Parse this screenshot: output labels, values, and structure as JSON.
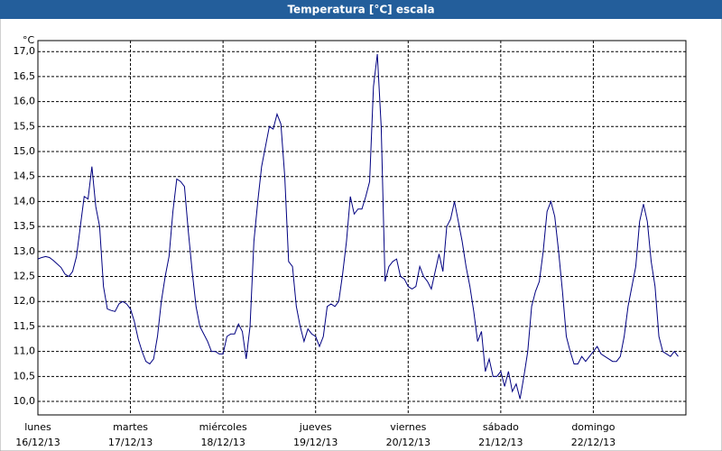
{
  "chart_data": {
    "type": "line",
    "title": "Temperatura [°C] escala",
    "y_label": "°C",
    "x": [
      0,
      1,
      2,
      3,
      4,
      5,
      6,
      7,
      8,
      9,
      10,
      11,
      12,
      13,
      14,
      15,
      16,
      17,
      18,
      19,
      20,
      21,
      22,
      23,
      24,
      25,
      26,
      27,
      28,
      29,
      30,
      31,
      32,
      33,
      34,
      35,
      36,
      37,
      38,
      39,
      40,
      41,
      42,
      43,
      44,
      45,
      46,
      47,
      48,
      49,
      50,
      51,
      52,
      53,
      54,
      55,
      56,
      57,
      58,
      59,
      60,
      61,
      62,
      63,
      64,
      65,
      66,
      67,
      68,
      69,
      70,
      71,
      72,
      73,
      74,
      75,
      76,
      77,
      78,
      79,
      80,
      81,
      82,
      83,
      84,
      85,
      86,
      87,
      88,
      89,
      90,
      91,
      92,
      93,
      94,
      95,
      96,
      97,
      98,
      99,
      100,
      101,
      102,
      103,
      104,
      105,
      106,
      107,
      108,
      109,
      110,
      111,
      112,
      113,
      114,
      115,
      116,
      117,
      118,
      119,
      120,
      121,
      122,
      123,
      124,
      125,
      126,
      127,
      128,
      129,
      130,
      131,
      132,
      133,
      134,
      135,
      136,
      137,
      138,
      139,
      140,
      141,
      142,
      143,
      144,
      145,
      146,
      147,
      148,
      149,
      150,
      151,
      152,
      153,
      154,
      155,
      156,
      157,
      158,
      159,
      160,
      161,
      162,
      163,
      164,
      165,
      166
    ],
    "series": [
      {
        "color": "#000080",
        "values": [
          12.85,
          12.88,
          12.9,
          12.88,
          12.82,
          12.75,
          12.68,
          12.55,
          12.5,
          12.6,
          12.9,
          13.5,
          14.1,
          14.05,
          14.7,
          13.9,
          13.5,
          12.3,
          11.85,
          11.82,
          11.8,
          11.95,
          12.0,
          11.95,
          11.85,
          11.6,
          11.25,
          11.0,
          10.8,
          10.75,
          10.85,
          11.3,
          12.0,
          12.5,
          12.9,
          13.8,
          14.45,
          14.4,
          14.3,
          13.4,
          12.6,
          11.9,
          11.5,
          11.35,
          11.2,
          11.0,
          11.0,
          10.95,
          10.95,
          11.3,
          11.35,
          11.35,
          11.55,
          11.4,
          10.85,
          11.5,
          13.2,
          14.0,
          14.7,
          15.1,
          15.5,
          15.45,
          15.75,
          15.55,
          14.5,
          12.8,
          12.7,
          11.9,
          11.5,
          11.2,
          11.45,
          11.35,
          11.3,
          11.1,
          11.3,
          11.9,
          11.95,
          11.9,
          12.0,
          12.55,
          13.2,
          14.1,
          13.75,
          13.85,
          13.85,
          14.1,
          14.4,
          16.3,
          16.95,
          15.5,
          12.4,
          12.7,
          12.8,
          12.85,
          12.5,
          12.45,
          12.3,
          12.25,
          12.3,
          12.7,
          12.5,
          12.4,
          12.25,
          12.6,
          12.95,
          12.6,
          13.5,
          13.65,
          14.0,
          13.6,
          13.2,
          12.7,
          12.3,
          11.8,
          11.2,
          11.4,
          10.6,
          10.85,
          10.5,
          10.5,
          10.6,
          10.3,
          10.6,
          10.2,
          10.35,
          10.05,
          10.5,
          11.0,
          11.9,
          12.2,
          12.4,
          13.0,
          13.8,
          14.0,
          13.7,
          13.0,
          12.2,
          11.3,
          11.0,
          10.75,
          10.75,
          10.9,
          10.8,
          10.9,
          11.0,
          11.1,
          10.95,
          10.9,
          10.85,
          10.8,
          10.8,
          10.9,
          11.3,
          11.9,
          12.3,
          12.7,
          13.6,
          13.95,
          13.6,
          12.8,
          12.3,
          11.3,
          11.0,
          10.95,
          10.9,
          11.0,
          10.9
        ]
      }
    ],
    "xlim": [
      0,
      168
    ],
    "xticks": [
      {
        "value": 0,
        "label": "lunes",
        "date": "16/12/13"
      },
      {
        "value": 24,
        "label": "martes",
        "date": "17/12/13"
      },
      {
        "value": 48,
        "label": "miércoles",
        "date": "18/12/13"
      },
      {
        "value": 72,
        "label": "jueves",
        "date": "19/12/13"
      },
      {
        "value": 96,
        "label": "viernes",
        "date": "20/12/13"
      },
      {
        "value": 120,
        "label": "sábado",
        "date": "21/12/13"
      },
      {
        "value": 144,
        "label": "domingo",
        "date": "22/12/13"
      }
    ],
    "ylim": [
      9.73,
      17.22
    ],
    "yticks": [
      {
        "value": 10,
        "label": "10,0"
      },
      {
        "value": 10.5,
        "label": "10,5"
      },
      {
        "value": 11,
        "label": "11,0"
      },
      {
        "value": 11.5,
        "label": "11,5"
      },
      {
        "value": 12,
        "label": "12,0"
      },
      {
        "value": 12.5,
        "label": "12,5"
      },
      {
        "value": 13,
        "label": "13,0"
      },
      {
        "value": 13.5,
        "label": "13,5"
      },
      {
        "value": 14,
        "label": "14,0"
      },
      {
        "value": 14.5,
        "label": "14,5"
      },
      {
        "value": 15,
        "label": "15,0"
      },
      {
        "value": 15.5,
        "label": "15,5"
      },
      {
        "value": 16,
        "label": "16,0"
      },
      {
        "value": 16.5,
        "label": "16,5"
      },
      {
        "value": 17,
        "label": "17,0"
      }
    ],
    "grid": true
  }
}
